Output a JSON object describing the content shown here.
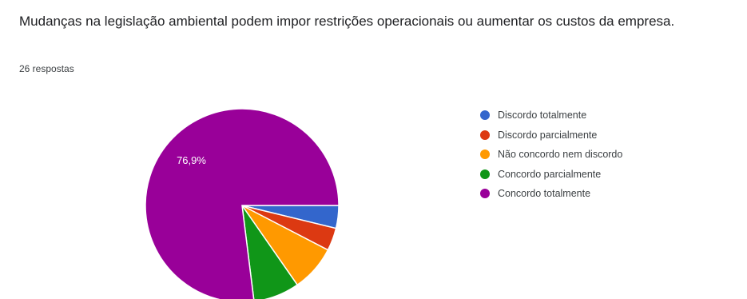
{
  "question": {
    "title": "Mudanças na legislação ambiental podem impor restrições operacionais ou aumentar os custos da empresa.",
    "response_count": "26 respostas"
  },
  "chart_data": {
    "type": "pie",
    "categories": [
      "Discordo totalmente",
      "Discordo parcialmente",
      "Não concordo nem discordo",
      "Concordo parcialmente",
      "Concordo totalmente"
    ],
    "values": [
      3.8,
      3.8,
      7.7,
      7.7,
      76.9
    ],
    "colors": [
      "#3366cc",
      "#dc3912",
      "#ff9900",
      "#109618",
      "#990099"
    ],
    "data_labels": [
      "",
      "",
      "",
      "",
      "76,9%"
    ],
    "legend_position": "right"
  }
}
